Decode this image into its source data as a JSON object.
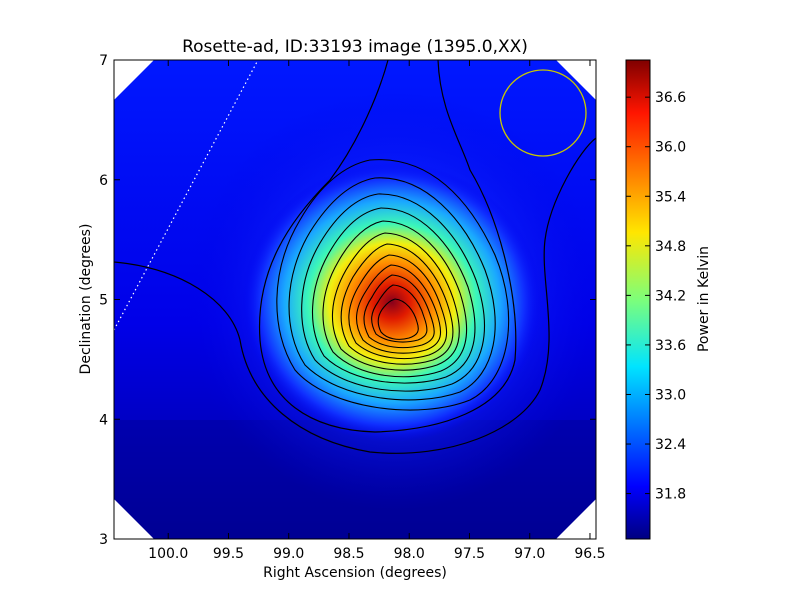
{
  "chart_data": {
    "type": "heatmap",
    "title": "Rosette-ad, ID:33193 image (1395.0,XX)",
    "xlabel": "Right Ascension (degrees)",
    "ylabel": "Declination (degrees)",
    "xlim": [
      100.45,
      96.45
    ],
    "ylim": [
      3,
      7
    ],
    "x_ticks": [
      "100.0",
      "99.5",
      "99.0",
      "98.5",
      "98.0",
      "97.5",
      "97.0",
      "96.5"
    ],
    "y_ticks": [
      "3",
      "4",
      "5",
      "6",
      "7"
    ],
    "colorbar": {
      "label": "Power in Kelvin",
      "colormap": "jet",
      "range": [
        31.25,
        37.05
      ],
      "ticks": [
        "31.8",
        "32.4",
        "33.0",
        "33.6",
        "34.2",
        "34.8",
        "35.4",
        "36.0",
        "36.6"
      ]
    },
    "peak": {
      "ra": 98.05,
      "dec": 4.82,
      "value": 37.0
    },
    "contours": {
      "levels": 14,
      "color": "#000000"
    },
    "beam": {
      "ra": 96.85,
      "dec": 6.55,
      "color": "#c8c800"
    },
    "dotted_line": {
      "from": [
        100.45,
        4.75
      ],
      "to": [
        99.2,
        7.0
      ],
      "color": "#ffffff"
    },
    "grid": false
  }
}
